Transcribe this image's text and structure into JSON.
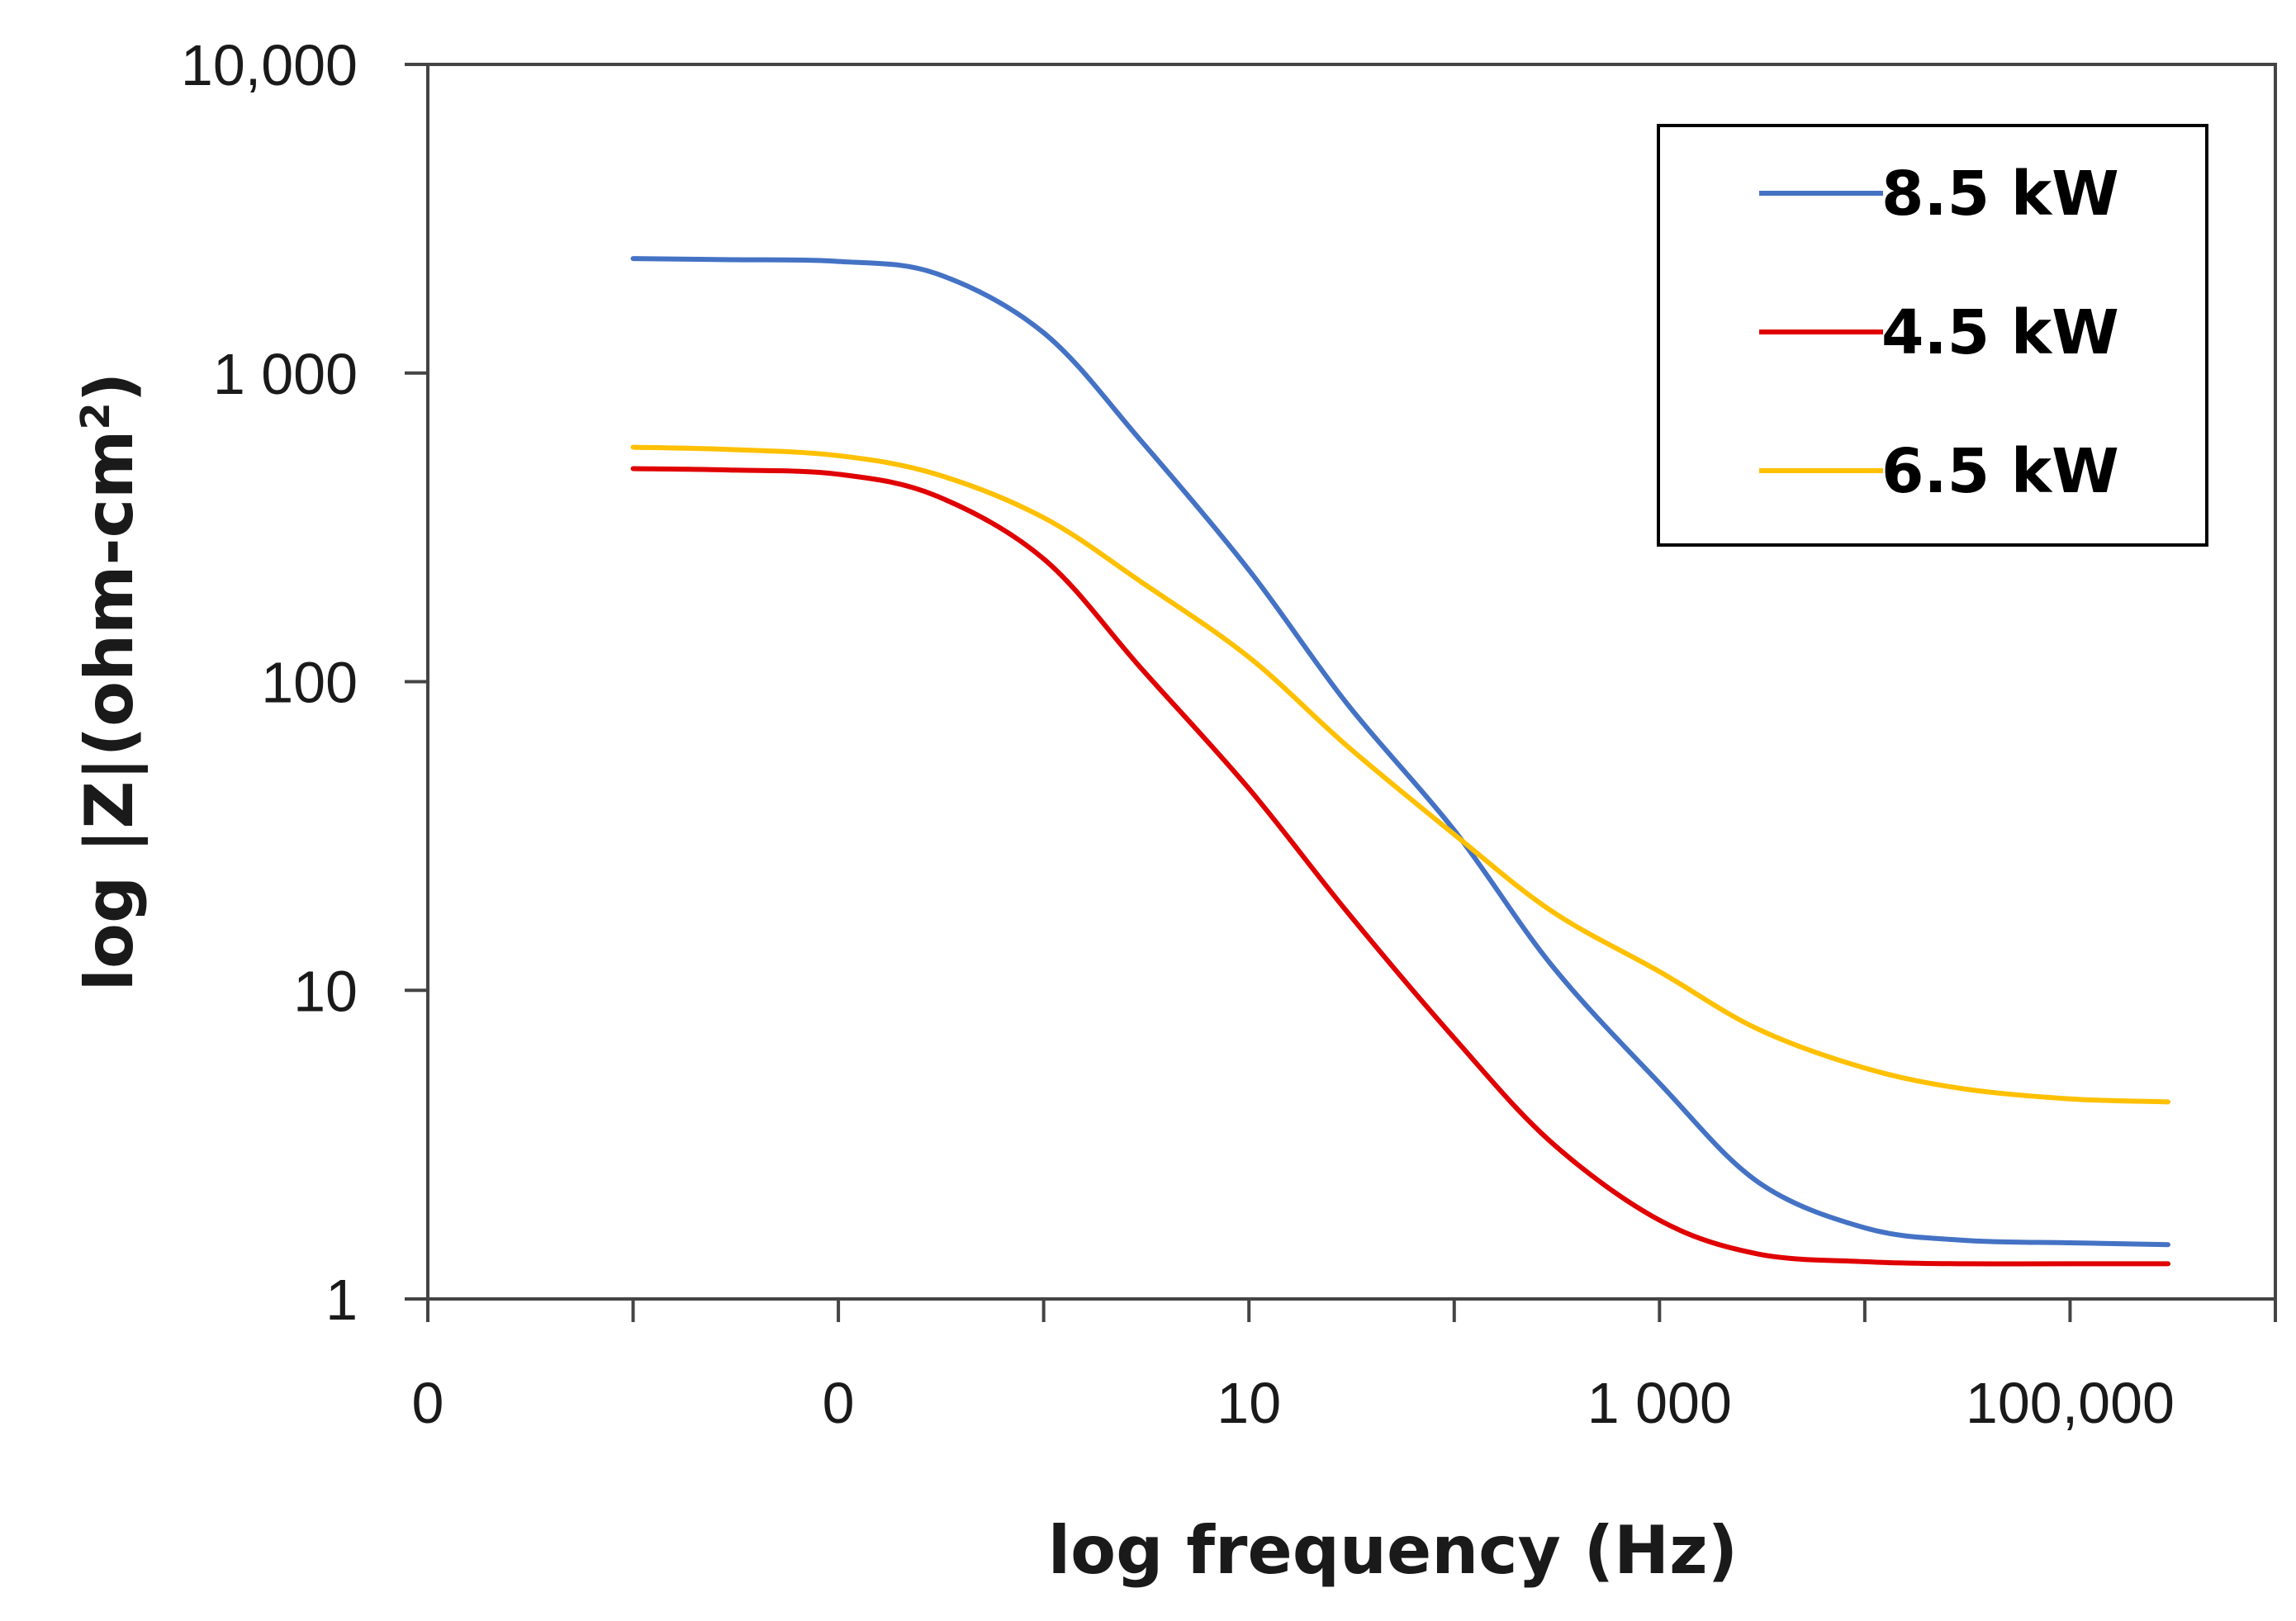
{
  "chart_data": {
    "type": "line",
    "title": "",
    "xlabel": "log frequency (Hz)",
    "ylabel_main": "log |Z|(ohm-cm",
    "ylabel_superscript": "2",
    "ylabel_close": ")",
    "x_scale": "log",
    "y_scale": "log",
    "xlim": [
      0.01,
      10000000
    ],
    "ylim": [
      1,
      10000
    ],
    "x_ticks": [
      {
        "value": 0.01,
        "label": "0"
      },
      {
        "value": 0.1,
        "label": ""
      },
      {
        "value": 1,
        "label": "0"
      },
      {
        "value": 10,
        "label": ""
      },
      {
        "value": 100,
        "label": "10"
      },
      {
        "value": 1000,
        "label": ""
      },
      {
        "value": 10000,
        "label": "1 000"
      },
      {
        "value": 100000,
        "label": ""
      },
      {
        "value": 1000000,
        "label": "100,000"
      },
      {
        "value": 10000000,
        "label": ""
      }
    ],
    "y_ticks": [
      {
        "value": 1,
        "label": "1"
      },
      {
        "value": 10,
        "label": "10"
      },
      {
        "value": 100,
        "label": "100"
      },
      {
        "value": 1000,
        "label": "1 000"
      },
      {
        "value": 10000,
        "label": "10,000"
      }
    ],
    "grid": false,
    "legend_position": "top-right",
    "series": [
      {
        "name": "8.5 kW",
        "color": "#4472C4",
        "x": [
          0.1,
          0.3,
          1,
          3,
          10,
          30,
          100,
          300,
          1000,
          3000,
          10000,
          30000,
          100000,
          300000,
          1000000,
          3000000
        ],
        "y": [
          2350,
          2330,
          2300,
          2100,
          1350,
          600,
          230,
          85,
          33,
          12,
          5,
          2.4,
          1.7,
          1.55,
          1.52,
          1.5
        ]
      },
      {
        "name": "4.5 kW",
        "color": "#E00000",
        "x": [
          0.1,
          0.3,
          1,
          3,
          10,
          30,
          100,
          300,
          1000,
          3000,
          10000,
          30000,
          100000,
          300000,
          1000000,
          3000000
        ],
        "y": [
          490,
          485,
          470,
          400,
          250,
          110,
          45,
          18,
          7,
          3.2,
          1.8,
          1.4,
          1.32,
          1.3,
          1.3,
          1.3
        ]
      },
      {
        "name": "6.5 kW",
        "color": "#FFC000",
        "x": [
          0.1,
          0.3,
          1,
          3,
          10,
          30,
          100,
          300,
          1000,
          3000,
          10000,
          30000,
          100000,
          300000,
          1000000,
          3000000
        ],
        "y": [
          575,
          565,
          540,
          470,
          340,
          210,
          120,
          62,
          32,
          18,
          11.5,
          7.5,
          5.6,
          4.8,
          4.45,
          4.35
        ]
      }
    ]
  }
}
